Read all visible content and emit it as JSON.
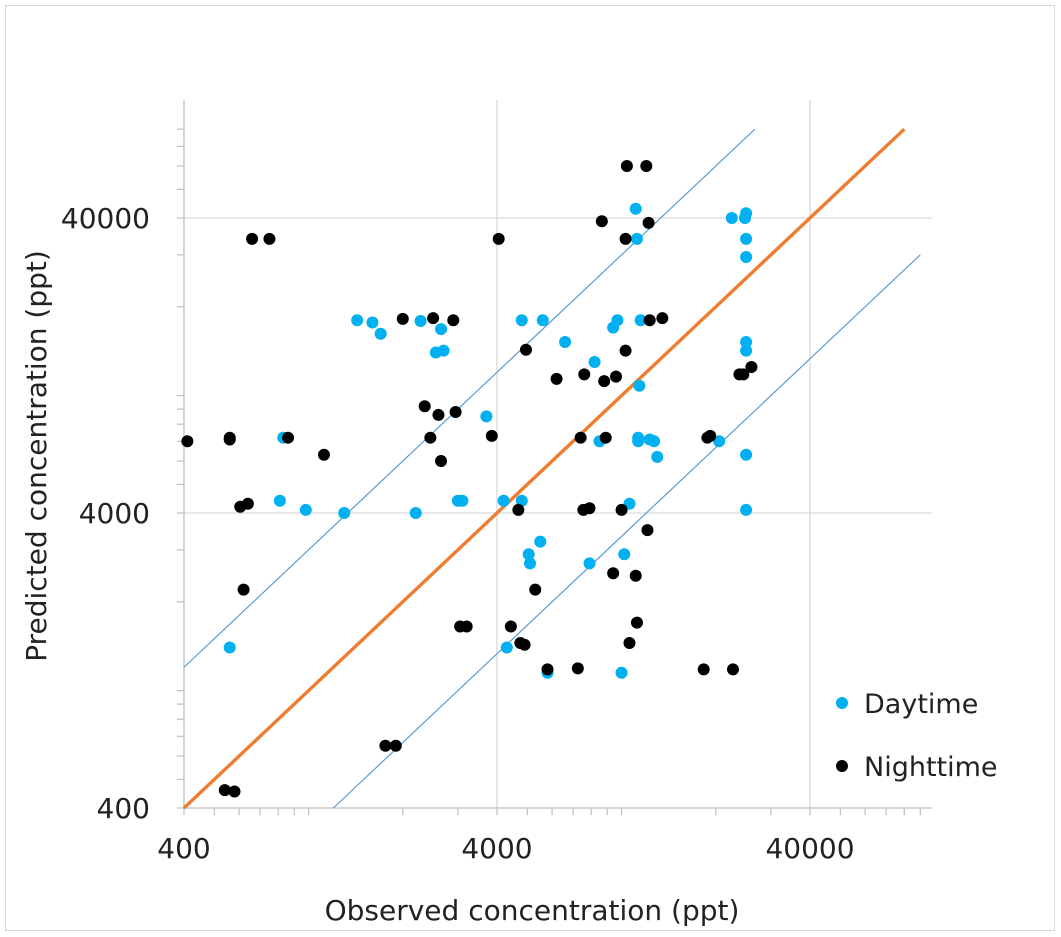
{
  "chart_data": {
    "type": "scatter",
    "xlabel": "Observed concentration (ppt)",
    "ylabel": "Predicted concentration (ppt)",
    "x_scale": "log",
    "y_scale": "log",
    "xlim": [
      400,
      90000
    ],
    "ylim": [
      400,
      80000
    ],
    "x_ticks": [
      "400",
      "4000",
      "40000"
    ],
    "y_ticks": [
      "400",
      "4000",
      "40000"
    ],
    "grid": true,
    "legend_position": "bottom-right",
    "reference_lines": [
      {
        "kind": "1:1",
        "color": "#ed7d31"
      },
      {
        "kind": "upper bound",
        "color": "#5b9bd5"
      },
      {
        "kind": "lower bound",
        "color": "#5b9bd5"
      }
    ],
    "series": [
      {
        "name": "Daytime",
        "color": "#00b0f0",
        "points": [
          [
            560,
            1400
          ],
          [
            830,
            7200
          ],
          [
            810,
            4400
          ],
          [
            980,
            4100
          ],
          [
            1300,
            4000
          ],
          [
            1430,
            18000
          ],
          [
            1600,
            17700
          ],
          [
            1700,
            16200
          ],
          [
            2200,
            4000
          ],
          [
            2280,
            17900
          ],
          [
            2550,
            14000
          ],
          [
            2650,
            16800
          ],
          [
            2700,
            14200
          ],
          [
            3000,
            4400
          ],
          [
            3100,
            4400
          ],
          [
            3700,
            8500
          ],
          [
            4200,
            4400
          ],
          [
            4300,
            1400
          ],
          [
            4800,
            18000
          ],
          [
            4800,
            4400
          ],
          [
            5050,
            2900
          ],
          [
            5100,
            2700
          ],
          [
            5500,
            3200
          ],
          [
            5600,
            18000
          ],
          [
            5800,
            1150
          ],
          [
            6600,
            15200
          ],
          [
            7900,
            2700
          ],
          [
            8200,
            13000
          ],
          [
            8500,
            7000
          ],
          [
            9400,
            17000
          ],
          [
            9700,
            18000
          ],
          [
            10000,
            1150
          ],
          [
            10200,
            2900
          ],
          [
            10600,
            4300
          ],
          [
            11100,
            43000
          ],
          [
            11200,
            34000
          ],
          [
            11300,
            7200
          ],
          [
            11300,
            7000
          ],
          [
            11400,
            10800
          ],
          [
            11500,
            18000
          ],
          [
            12300,
            7100
          ],
          [
            12700,
            7000
          ],
          [
            13000,
            6200
          ],
          [
            20500,
            7000
          ],
          [
            22500,
            40000
          ],
          [
            24800,
            40000
          ],
          [
            25000,
            41500
          ],
          [
            25000,
            15200
          ],
          [
            25000,
            14200
          ],
          [
            25000,
            34000
          ],
          [
            25000,
            29500
          ],
          [
            25000,
            4100
          ],
          [
            25000,
            6300
          ]
        ]
      },
      {
        "name": "Nighttime",
        "color": "#000000",
        "points": [
          [
            410,
            7000
          ],
          [
            540,
            460
          ],
          [
            560,
            7200
          ],
          [
            560,
            7100
          ],
          [
            580,
            455
          ],
          [
            605,
            4200
          ],
          [
            620,
            2200
          ],
          [
            640,
            4300
          ],
          [
            660,
            34000
          ],
          [
            750,
            34000
          ],
          [
            860,
            7200
          ],
          [
            1120,
            6300
          ],
          [
            1760,
            650
          ],
          [
            1900,
            650
          ],
          [
            2000,
            18200
          ],
          [
            2350,
            9200
          ],
          [
            2450,
            7200
          ],
          [
            2500,
            18300
          ],
          [
            2600,
            8600
          ],
          [
            2650,
            6000
          ],
          [
            2900,
            18000
          ],
          [
            2950,
            8800
          ],
          [
            3050,
            1650
          ],
          [
            3200,
            1650
          ],
          [
            3850,
            7300
          ],
          [
            4050,
            34000
          ],
          [
            4430,
            1650
          ],
          [
            4680,
            4100
          ],
          [
            4750,
            1450
          ],
          [
            4900,
            1430
          ],
          [
            4950,
            14300
          ],
          [
            5300,
            2200
          ],
          [
            5800,
            1180
          ],
          [
            6200,
            11400
          ],
          [
            7250,
            1190
          ],
          [
            7400,
            7200
          ],
          [
            7550,
            4100
          ],
          [
            7600,
            11800
          ],
          [
            7900,
            4150
          ],
          [
            8650,
            39000
          ],
          [
            8800,
            11200
          ],
          [
            8900,
            7200
          ],
          [
            9400,
            2500
          ],
          [
            9600,
            11600
          ],
          [
            10000,
            4100
          ],
          [
            10300,
            14200
          ],
          [
            10300,
            34000
          ],
          [
            10400,
            60000
          ],
          [
            10600,
            1450
          ],
          [
            11100,
            2450
          ],
          [
            11200,
            1700
          ],
          [
            12000,
            60000
          ],
          [
            12100,
            3500
          ],
          [
            12200,
            38500
          ],
          [
            12300,
            18000
          ],
          [
            13500,
            18300
          ],
          [
            18800,
            7200
          ],
          [
            19200,
            7300
          ],
          [
            18300,
            1180
          ],
          [
            22700,
            1180
          ],
          [
            23800,
            11800
          ],
          [
            24500,
            11800
          ],
          [
            26000,
            12500
          ]
        ]
      }
    ]
  }
}
